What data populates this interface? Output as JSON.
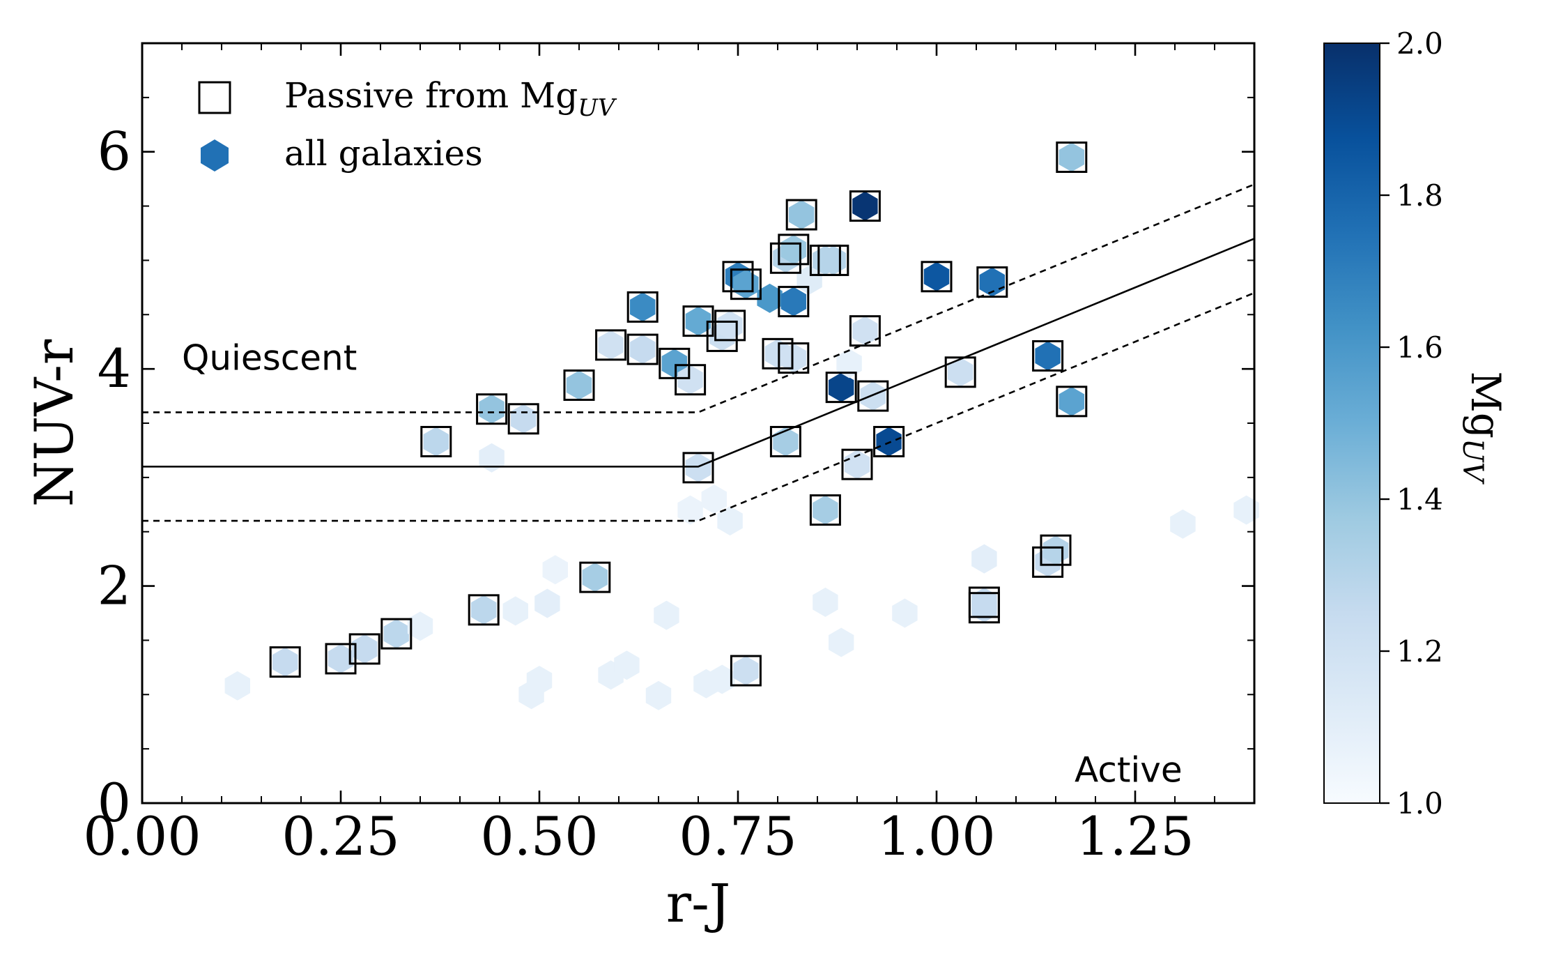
{
  "chart_data": {
    "type": "scatter",
    "xlabel": "r-J",
    "ylabel": "NUV-r",
    "xlim": [
      0.0,
      1.4
    ],
    "ylim": [
      0,
      7
    ],
    "x_ticks": [
      0.0,
      0.25,
      0.5,
      0.75,
      1.0,
      1.25
    ],
    "x_tick_labels": [
      "0.00",
      "0.25",
      "0.50",
      "0.75",
      "1.00",
      "1.25"
    ],
    "y_ticks": [
      0,
      2,
      4,
      6
    ],
    "y_tick_labels": [
      "0",
      "2",
      "4",
      "6"
    ],
    "legend": {
      "location": "upper-left",
      "entries": [
        {
          "label": "Passive from Mg",
          "subscript": "UV",
          "marker": "open-square"
        },
        {
          "label": "all galaxies",
          "marker": "filled-hexagon"
        }
      ]
    },
    "annotations": [
      {
        "text": "Quiescent",
        "x": 0.05,
        "y": 4.1
      },
      {
        "text": "Active",
        "x": 1.2,
        "y": 0.3
      }
    ],
    "colorbar": {
      "label": "Mg",
      "label_subscript": "UV",
      "range": [
        1.0,
        2.0
      ],
      "ticks": [
        1.0,
        1.2,
        1.4,
        1.6,
        1.8,
        2.0
      ],
      "tick_labels": [
        "1.0",
        "1.2",
        "1.4",
        "1.6",
        "1.8",
        "2.0"
      ],
      "colormap": [
        "#f7fbff",
        "#deebf7",
        "#c6dbef",
        "#9ecae1",
        "#6baed6",
        "#4292c6",
        "#2171b5",
        "#08519c",
        "#08306b"
      ]
    },
    "boundary_lines": [
      {
        "name": "selection",
        "style": "solid",
        "points": [
          [
            0.0,
            3.1
          ],
          [
            0.7,
            3.1
          ],
          [
            1.4,
            5.2
          ]
        ]
      },
      {
        "name": "selection-upper",
        "style": "dashed",
        "points": [
          [
            0.0,
            3.6
          ],
          [
            0.7,
            3.6
          ],
          [
            1.4,
            5.7
          ]
        ]
      },
      {
        "name": "selection-lower",
        "style": "dashed",
        "points": [
          [
            0.0,
            2.6
          ],
          [
            0.7,
            2.6
          ],
          [
            1.4,
            4.7
          ]
        ]
      }
    ],
    "series": [
      {
        "name": "all galaxies",
        "marker": "hexagon",
        "points": [
          {
            "x": 0.12,
            "y": 1.08,
            "c": 1.08
          },
          {
            "x": 0.18,
            "y": 1.3,
            "c": 1.25
          },
          {
            "x": 0.25,
            "y": 1.33,
            "c": 1.25
          },
          {
            "x": 0.28,
            "y": 1.42,
            "c": 1.25
          },
          {
            "x": 0.32,
            "y": 1.56,
            "c": 1.28
          },
          {
            "x": 0.35,
            "y": 1.63,
            "c": 1.08
          },
          {
            "x": 0.37,
            "y": 3.33,
            "c": 1.28
          },
          {
            "x": 0.43,
            "y": 1.78,
            "c": 1.28
          },
          {
            "x": 0.44,
            "y": 3.63,
            "c": 1.4
          },
          {
            "x": 0.44,
            "y": 3.18,
            "c": 1.1
          },
          {
            "x": 0.47,
            "y": 1.77,
            "c": 1.08
          },
          {
            "x": 0.48,
            "y": 3.54,
            "c": 1.25
          },
          {
            "x": 0.49,
            "y": 1.0,
            "c": 1.08
          },
          {
            "x": 0.5,
            "y": 1.13,
            "c": 1.08
          },
          {
            "x": 0.51,
            "y": 1.84,
            "c": 1.1
          },
          {
            "x": 0.52,
            "y": 2.15,
            "c": 1.06
          },
          {
            "x": 0.55,
            "y": 3.85,
            "c": 1.4
          },
          {
            "x": 0.57,
            "y": 2.08,
            "c": 1.35
          },
          {
            "x": 0.59,
            "y": 4.22,
            "c": 1.2
          },
          {
            "x": 0.59,
            "y": 1.18,
            "c": 1.08
          },
          {
            "x": 0.61,
            "y": 1.27,
            "c": 1.08
          },
          {
            "x": 0.63,
            "y": 4.57,
            "c": 1.65
          },
          {
            "x": 0.63,
            "y": 4.18,
            "c": 1.25
          },
          {
            "x": 0.65,
            "y": 0.99,
            "c": 1.08
          },
          {
            "x": 0.66,
            "y": 1.73,
            "c": 1.08
          },
          {
            "x": 0.67,
            "y": 4.05,
            "c": 1.55
          },
          {
            "x": 0.69,
            "y": 3.9,
            "c": 1.2
          },
          {
            "x": 0.69,
            "y": 2.7,
            "c": 1.06
          },
          {
            "x": 0.7,
            "y": 4.44,
            "c": 1.52
          },
          {
            "x": 0.7,
            "y": 3.09,
            "c": 1.22
          },
          {
            "x": 0.71,
            "y": 1.1,
            "c": 1.08
          },
          {
            "x": 0.72,
            "y": 2.8,
            "c": 1.06
          },
          {
            "x": 0.73,
            "y": 4.3,
            "c": 1.22
          },
          {
            "x": 0.73,
            "y": 1.14,
            "c": 1.08
          },
          {
            "x": 0.74,
            "y": 4.4,
            "c": 1.2
          },
          {
            "x": 0.74,
            "y": 2.6,
            "c": 1.08
          },
          {
            "x": 0.75,
            "y": 4.85,
            "c": 1.7
          },
          {
            "x": 0.76,
            "y": 4.78,
            "c": 1.55
          },
          {
            "x": 0.76,
            "y": 1.22,
            "c": 1.22
          },
          {
            "x": 0.79,
            "y": 4.65,
            "c": 1.6
          },
          {
            "x": 0.8,
            "y": 4.14,
            "c": 1.22
          },
          {
            "x": 0.81,
            "y": 5.02,
            "c": 1.3
          },
          {
            "x": 0.81,
            "y": 3.33,
            "c": 1.35
          },
          {
            "x": 0.82,
            "y": 4.62,
            "c": 1.72
          },
          {
            "x": 0.82,
            "y": 4.1,
            "c": 1.2
          },
          {
            "x": 0.82,
            "y": 5.1,
            "c": 1.38
          },
          {
            "x": 0.83,
            "y": 5.42,
            "c": 1.4
          },
          {
            "x": 0.84,
            "y": 4.82,
            "c": 1.12
          },
          {
            "x": 0.86,
            "y": 5.0,
            "c": 1.3
          },
          {
            "x": 0.86,
            "y": 2.7,
            "c": 1.35
          },
          {
            "x": 0.86,
            "y": 1.85,
            "c": 1.08
          },
          {
            "x": 0.87,
            "y": 5.0,
            "c": 1.3
          },
          {
            "x": 0.88,
            "y": 3.83,
            "c": 1.92
          },
          {
            "x": 0.88,
            "y": 1.48,
            "c": 1.08
          },
          {
            "x": 0.89,
            "y": 4.05,
            "c": 1.08
          },
          {
            "x": 0.91,
            "y": 5.5,
            "c": 1.98
          },
          {
            "x": 0.9,
            "y": 3.12,
            "c": 1.2
          },
          {
            "x": 0.91,
            "y": 4.35,
            "c": 1.2
          },
          {
            "x": 0.92,
            "y": 3.75,
            "c": 1.22
          },
          {
            "x": 0.94,
            "y": 3.33,
            "c": 1.9
          },
          {
            "x": 0.96,
            "y": 1.75,
            "c": 1.08
          },
          {
            "x": 1.0,
            "y": 4.85,
            "c": 1.85
          },
          {
            "x": 1.03,
            "y": 3.97,
            "c": 1.22
          },
          {
            "x": 1.06,
            "y": 2.25,
            "c": 1.1
          },
          {
            "x": 1.06,
            "y": 1.85,
            "c": 1.25
          },
          {
            "x": 1.06,
            "y": 1.8,
            "c": 1.25
          },
          {
            "x": 1.07,
            "y": 4.8,
            "c": 1.75
          },
          {
            "x": 1.14,
            "y": 2.22,
            "c": 1.25
          },
          {
            "x": 1.14,
            "y": 4.12,
            "c": 1.75
          },
          {
            "x": 1.15,
            "y": 2.33,
            "c": 1.3
          },
          {
            "x": 1.17,
            "y": 5.95,
            "c": 1.4
          },
          {
            "x": 1.17,
            "y": 3.7,
            "c": 1.55
          },
          {
            "x": 1.31,
            "y": 2.57,
            "c": 1.08
          },
          {
            "x": 1.39,
            "y": 2.7,
            "c": 1.08
          }
        ]
      },
      {
        "name": "Passive from Mg_UV",
        "marker": "open-square",
        "points": [
          {
            "x": 0.18,
            "y": 1.3
          },
          {
            "x": 0.25,
            "y": 1.33
          },
          {
            "x": 0.28,
            "y": 1.42
          },
          {
            "x": 0.32,
            "y": 1.56
          },
          {
            "x": 0.37,
            "y": 3.33
          },
          {
            "x": 0.43,
            "y": 1.78
          },
          {
            "x": 0.44,
            "y": 3.63
          },
          {
            "x": 0.48,
            "y": 3.54
          },
          {
            "x": 0.55,
            "y": 3.85
          },
          {
            "x": 0.57,
            "y": 2.08
          },
          {
            "x": 0.59,
            "y": 4.22
          },
          {
            "x": 0.63,
            "y": 4.57
          },
          {
            "x": 0.63,
            "y": 4.18
          },
          {
            "x": 0.67,
            "y": 4.05
          },
          {
            "x": 0.69,
            "y": 3.9
          },
          {
            "x": 0.7,
            "y": 4.44
          },
          {
            "x": 0.7,
            "y": 3.09
          },
          {
            "x": 0.73,
            "y": 4.3
          },
          {
            "x": 0.74,
            "y": 4.4
          },
          {
            "x": 0.75,
            "y": 4.85
          },
          {
            "x": 0.76,
            "y": 4.78
          },
          {
            "x": 0.76,
            "y": 1.22
          },
          {
            "x": 0.8,
            "y": 4.14
          },
          {
            "x": 0.81,
            "y": 5.02
          },
          {
            "x": 0.81,
            "y": 3.33
          },
          {
            "x": 0.82,
            "y": 4.62
          },
          {
            "x": 0.82,
            "y": 4.1
          },
          {
            "x": 0.82,
            "y": 5.1
          },
          {
            "x": 0.83,
            "y": 5.42
          },
          {
            "x": 0.86,
            "y": 5.0
          },
          {
            "x": 0.86,
            "y": 2.7
          },
          {
            "x": 0.87,
            "y": 5.0
          },
          {
            "x": 0.88,
            "y": 3.83
          },
          {
            "x": 0.91,
            "y": 5.5
          },
          {
            "x": 0.9,
            "y": 3.12
          },
          {
            "x": 0.91,
            "y": 4.35
          },
          {
            "x": 0.92,
            "y": 3.75
          },
          {
            "x": 0.94,
            "y": 3.33
          },
          {
            "x": 1.0,
            "y": 4.85
          },
          {
            "x": 1.03,
            "y": 3.97
          },
          {
            "x": 1.06,
            "y": 1.85
          },
          {
            "x": 1.06,
            "y": 1.8
          },
          {
            "x": 1.07,
            "y": 4.8
          },
          {
            "x": 1.14,
            "y": 2.22
          },
          {
            "x": 1.14,
            "y": 4.12
          },
          {
            "x": 1.15,
            "y": 2.33
          },
          {
            "x": 1.17,
            "y": 5.95
          },
          {
            "x": 1.17,
            "y": 3.7
          }
        ]
      }
    ]
  }
}
